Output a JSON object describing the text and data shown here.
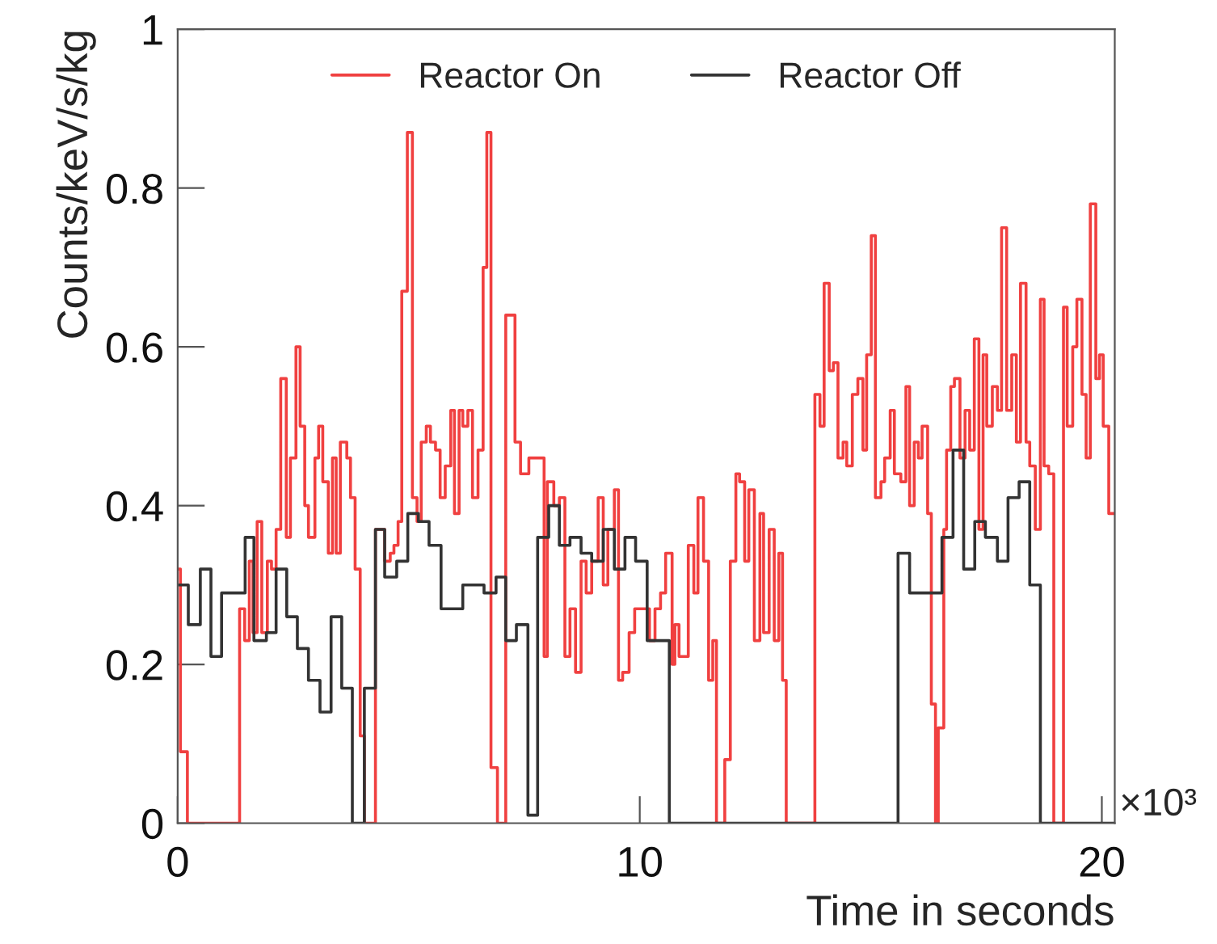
{
  "chart_data": {
    "type": "step",
    "xlabel": "Time in seconds",
    "ylabel": "Counts/keV/s/kg",
    "annotations": [
      "×10³"
    ],
    "xlim": [
      0,
      20.28
    ],
    "ylim": [
      0,
      1
    ],
    "xticks": [
      0,
      10,
      20
    ],
    "yticks": [
      0,
      0.2,
      0.4,
      0.6,
      0.8,
      1
    ],
    "grid": false,
    "legend": "top",
    "series": [
      {
        "name": "Reactor On",
        "color": "#f04040",
        "x": [
          0,
          0.06,
          0.21,
          1.34,
          1.45,
          1.55,
          1.63,
          1.72,
          1.82,
          1.94,
          2.03,
          2.13,
          2.23,
          2.35,
          2.44,
          2.56,
          2.65,
          2.75,
          2.83,
          2.97,
          3.05,
          3.14,
          3.26,
          3.35,
          3.43,
          3.52,
          3.66,
          3.74,
          3.84,
          3.95,
          4.04,
          4.28,
          4.48,
          4.6,
          4.68,
          4.77,
          4.85,
          4.97,
          5.08,
          5.18,
          5.27,
          5.38,
          5.47,
          5.58,
          5.68,
          5.79,
          5.91,
          5.99,
          6.09,
          6.17,
          6.28,
          6.38,
          6.5,
          6.61,
          6.69,
          6.78,
          6.92,
          7.1,
          7.3,
          7.42,
          7.6,
          7.71,
          7.93,
          8.0,
          8.14,
          8.26,
          8.38,
          8.49,
          8.61,
          8.73,
          8.84,
          8.96,
          9.1,
          9.21,
          9.31,
          9.45,
          9.54,
          9.63,
          9.77,
          9.89,
          10.12,
          10.21,
          10.33,
          10.45,
          10.56,
          10.7,
          10.76,
          10.85,
          10.96,
          11.05,
          11.17,
          11.26,
          11.38,
          11.49,
          11.58,
          11.66,
          11.84,
          11.96,
          12.08,
          12.16,
          12.27,
          12.36,
          12.48,
          12.6,
          12.68,
          12.8,
          12.91,
          13.01,
          13.09,
          13.17,
          13.79,
          13.9,
          13.99,
          14.1,
          14.19,
          14.29,
          14.4,
          14.48,
          14.6,
          14.72,
          14.83,
          14.91,
          15.01,
          15.1,
          15.22,
          15.3,
          15.42,
          15.51,
          15.65,
          15.76,
          15.84,
          15.94,
          16.03,
          16.11,
          16.23,
          16.31,
          16.4,
          16.46,
          16.58,
          16.64,
          16.73,
          16.81,
          16.93,
          17.04,
          17.14,
          17.24,
          17.34,
          17.43,
          17.51,
          17.63,
          17.74,
          17.83,
          17.94,
          18.05,
          18.15,
          18.24,
          18.36,
          18.44,
          18.56,
          18.67,
          18.75,
          18.85,
          18.96,
          19.17,
          19.25,
          19.37,
          19.46,
          19.57,
          19.66,
          19.75,
          19.87,
          19.95,
          20.03,
          20.15,
          20.28
        ],
        "values": [
          0.32,
          0.09,
          0,
          0.27,
          0.23,
          0.33,
          0.24,
          0.38,
          0.24,
          0.33,
          0.32,
          0.37,
          0.56,
          0.36,
          0.46,
          0.6,
          0.5,
          0.4,
          0.36,
          0.46,
          0.5,
          0.43,
          0.34,
          0.46,
          0.34,
          0.48,
          0.46,
          0.41,
          0.32,
          0.11,
          0,
          0.37,
          0.33,
          0.34,
          0.35,
          0.38,
          0.67,
          0.87,
          0.41,
          0.38,
          0.48,
          0.5,
          0.48,
          0.47,
          0.41,
          0.45,
          0.52,
          0.39,
          0.52,
          0.5,
          0.52,
          0.41,
          0.47,
          0.7,
          0.87,
          0.07,
          0,
          0.64,
          0.48,
          0.44,
          0.46,
          0.46,
          0.21,
          0.43,
          0.4,
          0.41,
          0.21,
          0.27,
          0.19,
          0.33,
          0.29,
          0.33,
          0.41,
          0.3,
          0.37,
          0.42,
          0.18,
          0.19,
          0.24,
          0.27,
          0.27,
          0.23,
          0.27,
          0.29,
          0.34,
          0.2,
          0.25,
          0.21,
          0.21,
          0.35,
          0.29,
          0.41,
          0.33,
          0.18,
          0.23,
          0,
          0.08,
          0.33,
          0.44,
          0.43,
          0.33,
          0.42,
          0.23,
          0.39,
          0.24,
          0.37,
          0.23,
          0.34,
          0.18,
          0,
          0.54,
          0.5,
          0.68,
          0.57,
          0.58,
          0.46,
          0.48,
          0.45,
          0.54,
          0.56,
          0.47,
          0.59,
          0.74,
          0.41,
          0.43,
          0.46,
          0.52,
          0.44,
          0.43,
          0.55,
          0.4,
          0.48,
          0.46,
          0.5,
          0.39,
          0.15,
          0,
          0.12,
          0.37,
          0.47,
          0.55,
          0.56,
          0.46,
          0.52,
          0.47,
          0.61,
          0.37,
          0.59,
          0.5,
          0.55,
          0.52,
          0.75,
          0.52,
          0.59,
          0.48,
          0.68,
          0.48,
          0.45,
          0.37,
          0.66,
          0.45,
          0.44,
          0,
          0.65,
          0.5,
          0.6,
          0.66,
          0.54,
          0.46,
          0.78,
          0.56,
          0.59,
          0.5,
          0.39,
          0.39
        ]
      },
      {
        "name": "Reactor Off",
        "color": "#333333",
        "x": [
          0,
          0.23,
          0.49,
          0.72,
          0.95,
          1.46,
          1.65,
          1.92,
          2.13,
          2.36,
          2.59,
          2.83,
          3.08,
          3.32,
          3.55,
          3.78,
          4.04,
          4.28,
          4.48,
          4.74,
          4.98,
          5.21,
          5.44,
          5.7,
          5.93,
          6.17,
          6.4,
          6.63,
          6.89,
          7.1,
          7.33,
          7.58,
          7.79,
          8.03,
          8.26,
          8.49,
          8.73,
          8.96,
          9.21,
          9.45,
          9.68,
          9.91,
          10.16,
          10.64,
          15.59,
          15.84,
          16.54,
          16.78,
          17.01,
          17.25,
          17.48,
          17.74,
          17.97,
          18.21,
          18.44,
          18.67,
          20.28
        ],
        "values": [
          0.3,
          0.25,
          0.32,
          0.21,
          0.29,
          0.36,
          0.23,
          0.24,
          0.32,
          0.26,
          0.22,
          0.18,
          0.14,
          0.26,
          0.17,
          0,
          0.17,
          0.37,
          0.31,
          0.33,
          0.39,
          0.38,
          0.35,
          0.27,
          0.27,
          0.3,
          0.3,
          0.29,
          0.31,
          0.23,
          0.25,
          0.01,
          0.36,
          0.4,
          0.35,
          0.36,
          0.34,
          0.33,
          0.37,
          0.32,
          0.36,
          0.33,
          0.23,
          0,
          0.34,
          0.29,
          0.36,
          0.47,
          0.32,
          0.38,
          0.36,
          0.33,
          0.41,
          0.43,
          0.3,
          0,
          0
        ]
      }
    ]
  }
}
